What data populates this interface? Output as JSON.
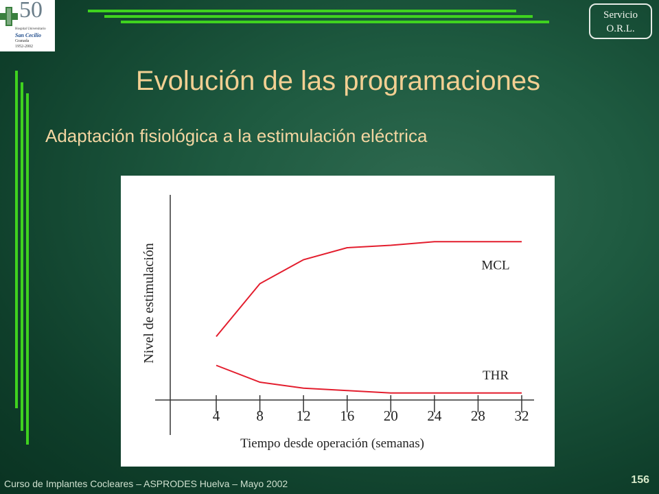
{
  "slide": {
    "title": "Evolución de las programaciones",
    "subtitle": "Adaptación fisiológica a la estimulación eléctrica",
    "footer": "Curso de Implantes Cocleares – ASPRODES Huelva – Mayo 2002",
    "page_number": "156"
  },
  "logo": {
    "number": "50",
    "line1": "Hospital Universitario",
    "line2": "San Cecilio",
    "line3": "Granada",
    "years": "1952-2002"
  },
  "badge": {
    "line1": "Servicio",
    "line2": "O.R.L."
  },
  "colors": {
    "accent_green": "#3fd21f",
    "title": "#f2cf92",
    "series_line": "#e31d2d",
    "background": "#1e5a40"
  },
  "chart_data": {
    "type": "line",
    "title": "",
    "xlabel": "Tiempo desde operación (semanas)",
    "ylabel": "Nivel de estimulación",
    "x": [
      4,
      8,
      12,
      16,
      20,
      24,
      28,
      32
    ],
    "xlim": [
      0,
      33
    ],
    "ylim": [
      0,
      100
    ],
    "grid": false,
    "series": [
      {
        "name": "MCL",
        "x": [
          4,
          8,
          12,
          16,
          20,
          24,
          28,
          32
        ],
        "values": [
          41,
          63,
          73,
          78,
          79,
          80.5,
          80.5,
          80.5
        ]
      },
      {
        "name": "THR",
        "x": [
          4,
          8,
          12,
          16,
          20,
          24,
          28,
          32
        ],
        "values": [
          29,
          22,
          19.5,
          18.5,
          17.5,
          17.5,
          17.5,
          17.5
        ]
      }
    ]
  }
}
